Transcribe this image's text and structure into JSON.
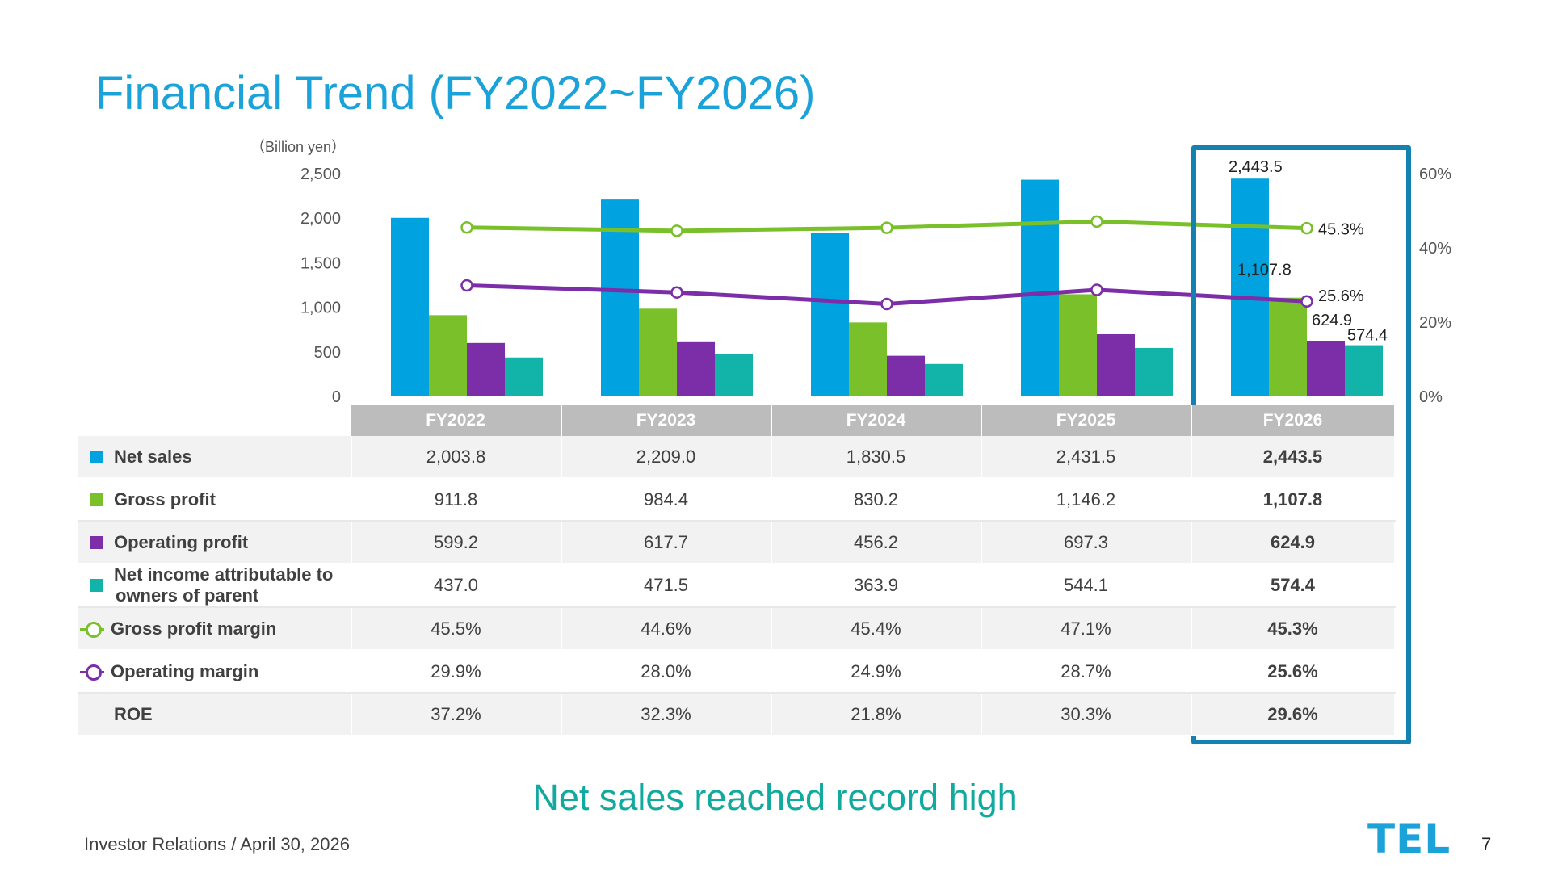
{
  "slide": {
    "title": "Financial Trend (FY2022~FY2026)",
    "tagline": "Net sales reached record high",
    "footer": "Investor Relations / April 30, 2026",
    "logo": "TEL",
    "page_number": "7"
  },
  "chart_data": {
    "type": "bar",
    "unit_label": "（Billion yen）",
    "categories": [
      "FY2022",
      "FY2023",
      "FY2024",
      "FY2025",
      "FY2026"
    ],
    "y_left": {
      "range": [
        0,
        2500
      ],
      "ticks": [
        "0",
        "500",
        "1,000",
        "1,500",
        "2,000",
        "2,500"
      ]
    },
    "y_right": {
      "range": [
        0,
        60
      ],
      "ticks": [
        "0%",
        "20%",
        "40%",
        "60%"
      ]
    },
    "bar_series": [
      {
        "name": "Net sales",
        "color": "#00a3e0",
        "values": [
          2003.8,
          2209.0,
          1830.5,
          2431.5,
          2443.5
        ]
      },
      {
        "name": "Gross profit",
        "color": "#7ac02a",
        "values": [
          911.8,
          984.4,
          830.2,
          1146.2,
          1107.8
        ]
      },
      {
        "name": "Operating profit",
        "color": "#7b2ea8",
        "values": [
          599.2,
          617.7,
          456.2,
          697.3,
          624.9
        ]
      },
      {
        "name": "Net income attributable to owners of parent",
        "color": "#12b3a8",
        "values": [
          437.0,
          471.5,
          363.9,
          544.1,
          574.4
        ]
      }
    ],
    "line_series": [
      {
        "name": "Gross profit margin",
        "color": "#7ac02a",
        "axis": "right",
        "values": [
          45.5,
          44.6,
          45.4,
          47.1,
          45.3
        ]
      },
      {
        "name": "Operating margin",
        "color": "#7b2ea8",
        "axis": "right",
        "values": [
          29.9,
          28.0,
          24.9,
          28.7,
          25.6
        ]
      }
    ],
    "data_labels": [
      {
        "text": "2,443.5"
      },
      {
        "text": "1,107.8"
      },
      {
        "text": "624.9"
      },
      {
        "text": "574.4"
      },
      {
        "text": "45.3%"
      },
      {
        "text": "25.6%"
      }
    ],
    "highlight_category": "FY2026"
  },
  "table": {
    "headers": [
      "FY2022",
      "FY2023",
      "FY2024",
      "FY2025",
      "FY2026"
    ],
    "rows": [
      {
        "label": "Net sales",
        "values": [
          "2,003.8",
          "2,209.0",
          "1,830.5",
          "2,431.5",
          "2,443.5"
        ]
      },
      {
        "label": "Gross profit",
        "values": [
          "911.8",
          "984.4",
          "830.2",
          "1,146.2",
          "1,107.8"
        ]
      },
      {
        "label": "Operating profit",
        "values": [
          "599.2",
          "617.7",
          "456.2",
          "697.3",
          "624.9"
        ]
      },
      {
        "label_line1": "Net income attributable to",
        "label_line2": "owners of parent",
        "values": [
          "437.0",
          "471.5",
          "363.9",
          "544.1",
          "574.4"
        ]
      },
      {
        "label": "Gross profit margin",
        "values": [
          "45.5%",
          "44.6%",
          "45.4%",
          "47.1%",
          "45.3%"
        ]
      },
      {
        "label": "Operating margin",
        "values": [
          "29.9%",
          "28.0%",
          "24.9%",
          "28.7%",
          "25.6%"
        ]
      },
      {
        "label": "ROE",
        "values": [
          "37.2%",
          "32.3%",
          "21.8%",
          "30.3%",
          "29.6%"
        ]
      }
    ]
  }
}
